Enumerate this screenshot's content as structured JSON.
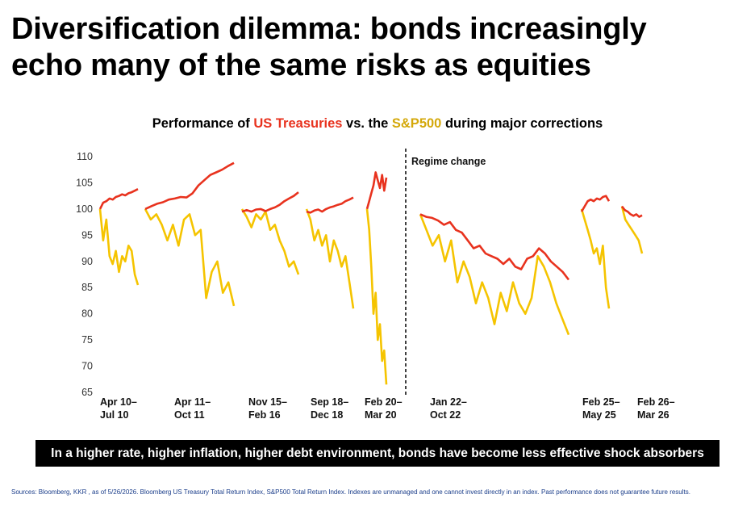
{
  "headline": {
    "line1": "Diversification dilemma: bonds increasingly",
    "line2": "echo many of the same risks as equities"
  },
  "subtitle": {
    "prefix": "Performance of ",
    "treasuries": "US Treasuries",
    "middle": " vs. the ",
    "sp500": "S&P500",
    "suffix": " during major corrections"
  },
  "banner": "In a higher rate, higher inflation, higher debt environment, bonds have become less effective shock absorbers",
  "sources": "Sources: Bloomberg, KKR , as of 5/26/2026. Bloomberg US Treasury Total Return Index, S&P500 Total Return Index. Indexes are unmanaged and one cannot invest directly in an index. Past performance does not guarantee future results.",
  "colors": {
    "treasuries": "#e8321e",
    "sp500": "#f5c400",
    "banner_bg": "#000000",
    "sources": "#1a3d8a"
  },
  "chart_data": {
    "type": "line",
    "title": "Performance of US Treasuries vs. the S&P500 during major corrections",
    "xlabel": "",
    "ylabel": "",
    "ylim": [
      65,
      110
    ],
    "yticks": [
      110,
      105,
      100,
      95,
      90,
      85,
      80,
      75,
      70,
      65
    ],
    "grid": false,
    "annotation": "Regime change",
    "series_names": [
      "US Treasuries",
      "S&P500"
    ],
    "periods": [
      {
        "label1": "Apr 10–",
        "label2": "Jul 10",
        "treasuries": [
          100,
          101.2,
          101.5,
          102,
          101.8,
          102.3,
          102.5,
          102.8,
          102.6,
          103,
          103.2,
          103.5,
          103.8
        ],
        "sp500": [
          100,
          94,
          98,
          91,
          89.5,
          92,
          88,
          91,
          90,
          93,
          92,
          87.5,
          85.5
        ]
      },
      {
        "label1": "Apr 11–",
        "label2": "Oct 11",
        "treasuries": [
          100,
          100.5,
          101,
          101.3,
          101.8,
          102,
          102.3,
          102.2,
          103,
          104.5,
          105.5,
          106.5,
          107,
          107.5,
          108.2,
          108.8
        ],
        "sp500": [
          100,
          98,
          99,
          97,
          94,
          97,
          93,
          98,
          99,
          95,
          96,
          83,
          88,
          90,
          84,
          86,
          81.5
        ]
      },
      {
        "label1": "Nov 15–",
        "label2": "Feb 16",
        "treasuries": [
          99.5,
          99.8,
          99.5,
          99.9,
          100,
          99.6,
          100,
          100.3,
          100.8,
          101.5,
          102,
          102.5,
          103.2
        ],
        "sp500": [
          100,
          98.5,
          96.5,
          99,
          98,
          99.5,
          96,
          97,
          94,
          92,
          89,
          90,
          87.5
        ]
      },
      {
        "label1": "Sep 18–",
        "label2": "Dec 18",
        "treasuries": [
          99.5,
          99.3,
          99.7,
          99.9,
          99.5,
          100,
          100.3,
          100.5,
          100.8,
          101,
          101.5,
          101.8,
          102.2
        ],
        "sp500": [
          100,
          98,
          94,
          96,
          93,
          95,
          90,
          94,
          92,
          89,
          91,
          86,
          81
        ]
      },
      {
        "label1": "Feb 20–",
        "label2": "Mar 20",
        "treasuries": [
          100,
          101.5,
          103,
          104.5,
          107,
          105.5,
          104,
          106.5,
          103.5,
          106
        ],
        "sp500": [
          100,
          96,
          89,
          80,
          84,
          75,
          78,
          71,
          73,
          66.5
        ]
      },
      {
        "label1": "Jan 22–",
        "label2": "Oct 22",
        "treasuries": [
          99,
          98.5,
          98.3,
          97.8,
          97,
          97.5,
          96,
          95.5,
          94,
          92.5,
          93,
          91.5,
          91,
          90.5,
          89.5,
          90.5,
          89,
          88.5,
          90.5,
          91,
          92.5,
          91.5,
          90,
          89,
          88,
          86.5
        ],
        "sp500": [
          99,
          96,
          93,
          95,
          90,
          94,
          86,
          90,
          87,
          82,
          86,
          83,
          78,
          84,
          80.5,
          86,
          82,
          80,
          83,
          91,
          89,
          86,
          82,
          79,
          76
        ]
      },
      {
        "label1": "Feb 25–",
        "label2": "May 25",
        "treasuries": [
          99.5,
          100.5,
          101.5,
          101.8,
          101.5,
          102,
          101.8,
          102.3,
          102.5,
          101.5
        ],
        "sp500": [
          100,
          98,
          96,
          94,
          91.5,
          92.5,
          89.5,
          93,
          85,
          81
        ]
      },
      {
        "label1": "Feb 26–",
        "label2": "Mar 26",
        "treasuries": [
          100.5,
          99.8,
          99.5,
          99,
          98.7,
          99,
          98.5,
          98.8
        ],
        "sp500": [
          100.5,
          98,
          97,
          96,
          95,
          94,
          91.5
        ]
      }
    ]
  }
}
